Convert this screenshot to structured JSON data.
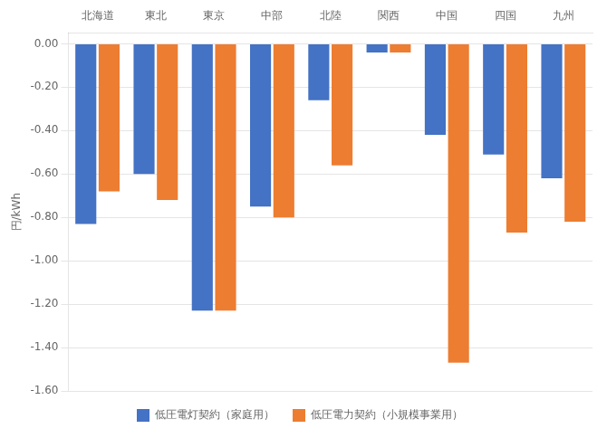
{
  "chart_data": {
    "type": "bar",
    "categories": [
      "北海道",
      "東北",
      "東京",
      "中部",
      "北陸",
      "関西",
      "中国",
      "四国",
      "九州"
    ],
    "series": [
      {
        "name": "低圧電灯契約（家庭用）",
        "color": "#4472C4",
        "values": [
          -0.83,
          -0.6,
          -1.23,
          -0.75,
          -0.26,
          -0.04,
          -0.42,
          -0.51,
          -0.62
        ]
      },
      {
        "name": "低圧電力契約（小規模事業用）",
        "color": "#ED7D31",
        "values": [
          -0.68,
          -0.72,
          -1.23,
          -0.8,
          -0.56,
          -0.04,
          -1.47,
          -0.87,
          -0.82
        ]
      }
    ],
    "ylabel": "円/kWh",
    "ylim": [
      -1.6,
      0.05
    ],
    "yticks": [
      {
        "value": 0.0,
        "label": "0.00"
      },
      {
        "value": -0.2,
        "label": "-0.20"
      },
      {
        "value": -0.4,
        "label": "-0.40"
      },
      {
        "value": -0.6,
        "label": "-0.60"
      },
      {
        "value": -0.8,
        "label": "-0.80"
      },
      {
        "value": -1.0,
        "label": "-1.00"
      },
      {
        "value": -1.2,
        "label": "-1.20"
      },
      {
        "value": -1.4,
        "label": "-1.40"
      },
      {
        "value": -1.6,
        "label": "-1.60"
      }
    ],
    "grid": true,
    "legend": "bottom"
  }
}
